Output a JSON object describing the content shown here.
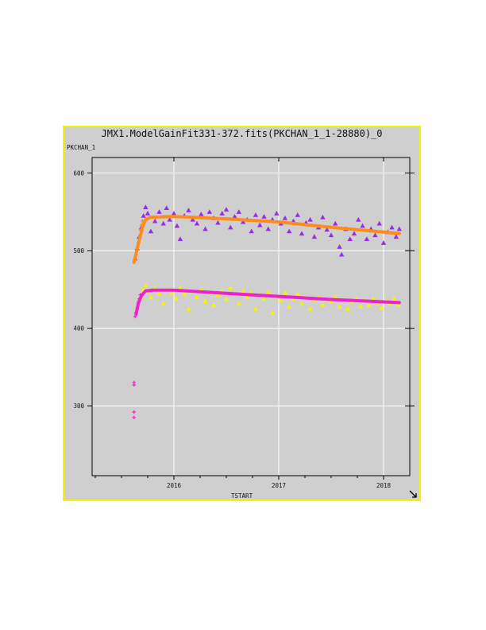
{
  "window": {
    "title": "JMX1.ModelGainFit331-372.fits(PKCHAN_1_1-28880)_0",
    "resize_icon": "resize-corner-icon"
  },
  "colors": {
    "frame_border": "#f4f400",
    "background": "#cfcfcf",
    "grid": "#ffffff",
    "series_upper_points": "#9a2be6",
    "series_upper_fit": "#ff8c1a",
    "series_lower_points": "#f4f400",
    "series_lower_fit": "#ee22cc"
  },
  "chart_data": {
    "type": "scatter",
    "title": "",
    "xlabel": "TSTART",
    "ylabel": "PKCHAN_1",
    "xlim": [
      2015.22,
      2018.25
    ],
    "ylim": [
      210,
      620
    ],
    "xticks": [
      2016,
      2017,
      2018
    ],
    "yticks": [
      300,
      400,
      500,
      600
    ],
    "grid": true,
    "legend": "none",
    "series": [
      {
        "marker": "triangle",
        "color": "#9a2be6",
        "points": [
          [
            2015.63,
            490
          ],
          [
            2015.65,
            503
          ],
          [
            2015.67,
            518
          ],
          [
            2015.69,
            530
          ],
          [
            2015.71,
            545
          ],
          [
            2015.73,
            556
          ],
          [
            2015.75,
            548
          ],
          [
            2015.78,
            525
          ],
          [
            2015.82,
            538
          ],
          [
            2015.86,
            550
          ],
          [
            2015.9,
            535
          ],
          [
            2015.93,
            555
          ],
          [
            2015.96,
            540
          ],
          [
            2016.0,
            548
          ],
          [
            2016.03,
            532
          ],
          [
            2016.06,
            515
          ],
          [
            2016.1,
            545
          ],
          [
            2016.14,
            552
          ],
          [
            2016.18,
            540
          ],
          [
            2016.22,
            535
          ],
          [
            2016.26,
            547
          ],
          [
            2016.3,
            528
          ],
          [
            2016.34,
            550
          ],
          [
            2016.38,
            542
          ],
          [
            2016.42,
            536
          ],
          [
            2016.46,
            548
          ],
          [
            2016.5,
            553
          ],
          [
            2016.54,
            530
          ],
          [
            2016.58,
            544
          ],
          [
            2016.62,
            550
          ],
          [
            2016.66,
            537
          ],
          [
            2016.7,
            540
          ],
          [
            2016.74,
            525
          ],
          [
            2016.78,
            546
          ],
          [
            2016.82,
            533
          ],
          [
            2016.86,
            544
          ],
          [
            2016.9,
            528
          ],
          [
            2016.94,
            540
          ],
          [
            2016.98,
            548
          ],
          [
            2017.02,
            535
          ],
          [
            2017.06,
            542
          ],
          [
            2017.1,
            525
          ],
          [
            2017.14,
            538
          ],
          [
            2017.18,
            546
          ],
          [
            2017.22,
            522
          ],
          [
            2017.26,
            536
          ],
          [
            2017.3,
            540
          ],
          [
            2017.34,
            518
          ],
          [
            2017.38,
            530
          ],
          [
            2017.42,
            543
          ],
          [
            2017.46,
            527
          ],
          [
            2017.5,
            520
          ],
          [
            2017.54,
            535
          ],
          [
            2017.58,
            505
          ],
          [
            2017.6,
            495
          ],
          [
            2017.64,
            528
          ],
          [
            2017.68,
            515
          ],
          [
            2017.72,
            522
          ],
          [
            2017.76,
            540
          ],
          [
            2017.8,
            532
          ],
          [
            2017.84,
            515
          ],
          [
            2017.88,
            528
          ],
          [
            2017.92,
            520
          ],
          [
            2017.96,
            535
          ],
          [
            2018.0,
            510
          ],
          [
            2018.04,
            524
          ],
          [
            2018.08,
            530
          ],
          [
            2018.12,
            518
          ],
          [
            2018.15,
            528
          ]
        ]
      },
      {
        "marker": "plus",
        "color": "#ff8c1a",
        "points": [
          [
            2015.63,
            488
          ],
          [
            2015.64,
            495
          ],
          [
            2015.65,
            503
          ],
          [
            2015.66,
            510
          ],
          [
            2015.67,
            518
          ],
          [
            2015.68,
            526
          ],
          [
            2015.69,
            533
          ],
          [
            2015.7,
            538
          ]
        ]
      },
      {
        "marker": "line",
        "color": "#ff8c1a",
        "points": [
          [
            2015.62,
            485
          ],
          [
            2015.66,
            508
          ],
          [
            2015.7,
            530
          ],
          [
            2015.73,
            540
          ],
          [
            2015.78,
            543
          ],
          [
            2016.0,
            544
          ],
          [
            2016.5,
            541
          ],
          [
            2017.0,
            537
          ],
          [
            2017.5,
            530
          ],
          [
            2018.0,
            524
          ],
          [
            2018.15,
            522
          ]
        ]
      },
      {
        "marker": "triangle",
        "color": "#f4f400",
        "points": [
          [
            2015.69,
            440
          ],
          [
            2015.71,
            450
          ],
          [
            2015.73,
            455
          ],
          [
            2015.75,
            448
          ],
          [
            2015.78,
            440
          ],
          [
            2015.82,
            452
          ],
          [
            2015.86,
            445
          ],
          [
            2015.9,
            432
          ],
          [
            2015.94,
            450
          ],
          [
            2015.98,
            446
          ],
          [
            2016.02,
            438
          ],
          [
            2016.06,
            452
          ],
          [
            2016.1,
            444
          ],
          [
            2016.14,
            425
          ],
          [
            2016.18,
            448
          ],
          [
            2016.22,
            440
          ],
          [
            2016.26,
            450
          ],
          [
            2016.3,
            435
          ],
          [
            2016.34,
            446
          ],
          [
            2016.38,
            430
          ],
          [
            2016.42,
            443
          ],
          [
            2016.46,
            448
          ],
          [
            2016.5,
            438
          ],
          [
            2016.54,
            452
          ],
          [
            2016.58,
            445
          ],
          [
            2016.62,
            432
          ],
          [
            2016.66,
            448
          ],
          [
            2016.7,
            440
          ],
          [
            2016.74,
            446
          ],
          [
            2016.78,
            425
          ],
          [
            2016.82,
            443
          ],
          [
            2016.86,
            438
          ],
          [
            2016.9,
            447
          ],
          [
            2016.94,
            420
          ],
          [
            2016.98,
            440
          ],
          [
            2017.02,
            436
          ],
          [
            2017.06,
            446
          ],
          [
            2017.1,
            428
          ],
          [
            2017.14,
            438
          ],
          [
            2017.18,
            444
          ],
          [
            2017.22,
            432
          ],
          [
            2017.26,
            440
          ],
          [
            2017.3,
            425
          ],
          [
            2017.34,
            437
          ],
          [
            2017.38,
            440
          ],
          [
            2017.42,
            430
          ],
          [
            2017.46,
            438
          ],
          [
            2017.5,
            434
          ],
          [
            2017.54,
            440
          ],
          [
            2017.58,
            428
          ],
          [
            2017.62,
            436
          ],
          [
            2017.66,
            425
          ],
          [
            2017.7,
            434
          ],
          [
            2017.74,
            438
          ],
          [
            2017.78,
            428
          ],
          [
            2017.82,
            436
          ],
          [
            2017.86,
            430
          ],
          [
            2017.9,
            438
          ],
          [
            2017.94,
            432
          ],
          [
            2017.98,
            426
          ],
          [
            2018.02,
            436
          ],
          [
            2018.06,
            432
          ],
          [
            2018.1,
            438
          ],
          [
            2018.14,
            430
          ]
        ]
      },
      {
        "marker": "plus",
        "color": "#ee22cc",
        "points": [
          [
            2015.62,
            330
          ],
          [
            2015.62,
            327
          ],
          [
            2015.62,
            292
          ],
          [
            2015.62,
            285
          ],
          [
            2015.63,
            415
          ],
          [
            2015.64,
            420
          ],
          [
            2015.65,
            425
          ],
          [
            2015.66,
            432
          ],
          [
            2015.67,
            438
          ],
          [
            2015.68,
            443
          ]
        ]
      },
      {
        "marker": "line",
        "color": "#ee22cc",
        "points": [
          [
            2015.64,
            418
          ],
          [
            2015.66,
            432
          ],
          [
            2015.69,
            442
          ],
          [
            2015.73,
            448
          ],
          [
            2015.8,
            449
          ],
          [
            2016.0,
            449
          ],
          [
            2016.5,
            445
          ],
          [
            2017.0,
            441
          ],
          [
            2017.5,
            437
          ],
          [
            2018.0,
            434
          ],
          [
            2018.15,
            433
          ]
        ]
      }
    ]
  }
}
